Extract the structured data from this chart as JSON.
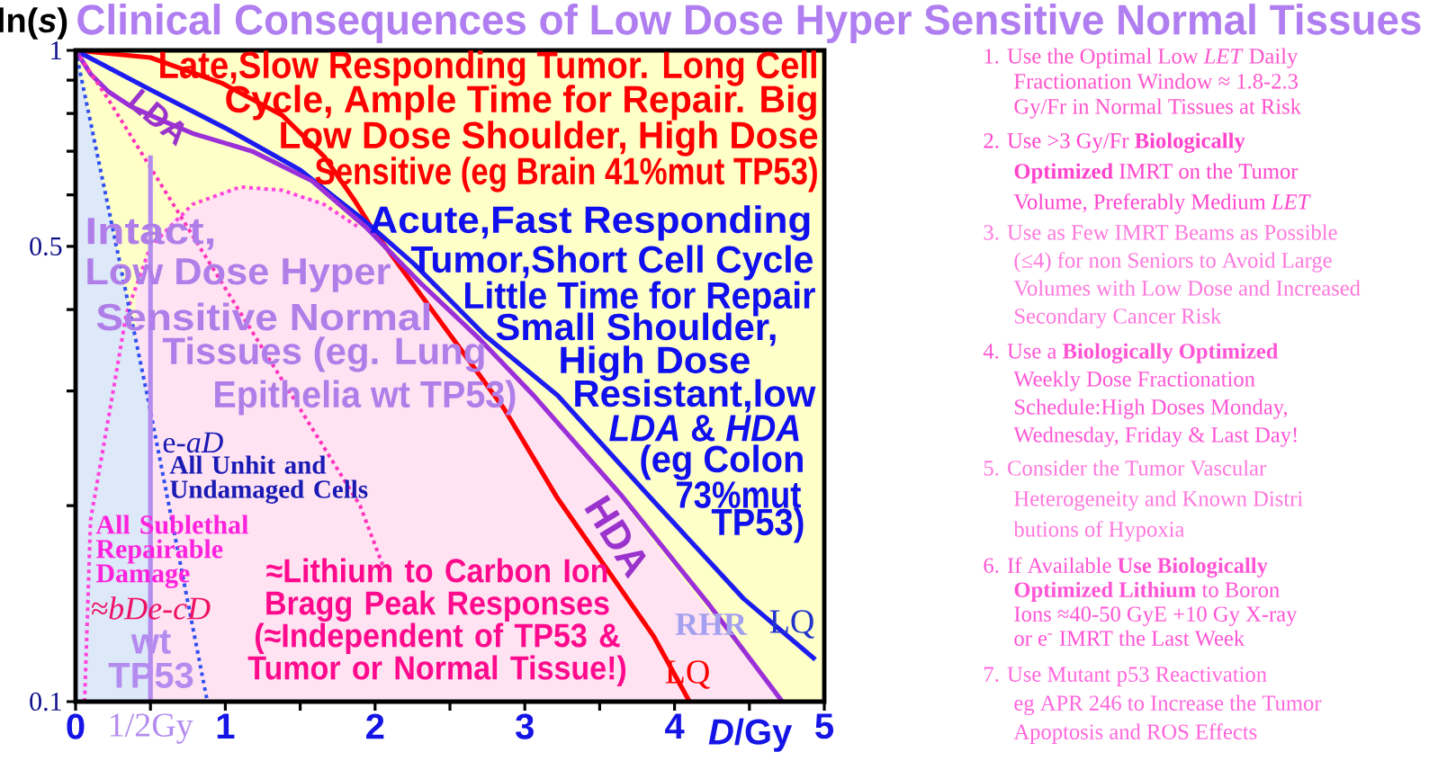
{
  "chart_data": {
    "type": "line",
    "title": "Clinical Consequences of Low Dose Hyper Sensitive Normal Tissues",
    "xlabel": "*D*/Gy",
    "ylabel": "ln(*s*)",
    "xlim": [
      0,
      5
    ],
    "ylim": [
      0.1,
      1
    ],
    "log": "y",
    "xticks": [
      0,
      {
        "value": 0.5,
        "label": "1/2Gy"
      },
      1,
      {
        "value": 1.5,
        "label": null
      },
      2,
      {
        "value": 2.5,
        "label": null
      },
      3,
      {
        "value": 3.5,
        "label": null
      },
      4,
      {
        "value": 4.5,
        "label": null
      },
      5
    ],
    "yticks": [
      0.1,
      {
        "value": 0.2,
        "label": null
      },
      {
        "value": 0.3,
        "label": null
      },
      {
        "value": 0.4,
        "label": null
      },
      0.5,
      {
        "value": 0.6,
        "label": null
      },
      {
        "value": 0.7,
        "label": null
      },
      {
        "value": 0.8,
        "label": null
      },
      {
        "value": 0.9,
        "label": null
      },
      1
    ],
    "bands": [
      {
        "axis": "y",
        "from": 0.1,
        "to": 1,
        "color": "#ffffc8"
      }
    ],
    "series": [
      {
        "type": "area",
        "color": "#ffe3f3",
        "x": [
          0.4,
          0.5,
          0.65,
          1,
          1.3,
          1.6,
          1.85,
          2,
          2.5,
          3,
          3.5,
          4,
          4.5,
          4.72
        ],
        "values": [
          0.43,
          0.5,
          0.55,
          0.61,
          0.615,
          0.59,
          0.545,
          0.52,
          0.4,
          0.305,
          0.225,
          0.16,
          0.115,
          0.1
        ]
      },
      {
        "type": "area",
        "color": "#dde8f8",
        "x": [
          0,
          0.25,
          0.5
        ],
        "values": [
          1,
          0.53,
          0.28
        ]
      },
      {
        "color": "#ff0000",
        "x": [
          0,
          0.5,
          0.98,
          1.38,
          1.66,
          1.86,
          1.98,
          2.42,
          2.86,
          3.22,
          3.58,
          3.86,
          4.1
        ],
        "values": [
          1,
          0.975,
          0.89,
          0.795,
          0.687,
          0.59,
          0.533,
          0.388,
          0.282,
          0.205,
          0.156,
          0.126,
          0.1
        ]
      },
      {
        "color": "#1c1cf0",
        "x": [
          0,
          0.5,
          1,
          1.5,
          1.94,
          2.26,
          2.74,
          3.22,
          3.82,
          4.46,
          4.94
        ],
        "values": [
          1,
          0.87,
          0.76,
          0.655,
          0.545,
          0.47,
          0.364,
          0.295,
          0.208,
          0.144,
          0.116
        ]
      },
      {
        "color": "#9b30d8",
        "x": [
          0,
          0.1,
          0.22,
          0.37,
          0.58,
          0.78,
          1.18,
          1.58,
          1.94,
          2.3,
          2.7,
          3.06,
          3.64,
          4.24,
          4.72
        ],
        "values": [
          1,
          0.92,
          0.864,
          0.82,
          0.78,
          0.746,
          0.7,
          0.63,
          0.535,
          0.44,
          0.36,
          0.295,
          0.208,
          0.14,
          0.1
        ]
      },
      {
        "color": "#ff33bb",
        "line_style": "dotted",
        "x": [
          0,
          0.22,
          0.85,
          1.9,
          2.06
        ],
        "values": [
          1,
          0.84,
          0.49,
          0.2,
          0.16
        ]
      },
      {
        "color": "#ff44dd",
        "line_style": "dotted",
        "x": [
          0.06,
          0.1,
          0.24,
          0.34,
          0.5,
          0.78,
          1.1,
          1.38,
          1.66,
          1.9
        ],
        "values": [
          0.1,
          0.19,
          0.29,
          0.395,
          0.5,
          0.58,
          0.617,
          0.61,
          0.58,
          0.533
        ]
      },
      {
        "color": "#3050f0",
        "line_style": "dotted",
        "x": [
          0,
          0.25,
          0.49,
          0.88
        ],
        "values": [
          1,
          0.53,
          0.287,
          0.1
        ]
      },
      {
        "color": "#b48cf0",
        "x": [
          0.5,
          0.5
        ],
        "values": [
          0.1,
          0.69
        ]
      }
    ],
    "annotations": [
      "Late,Slow Responding Tumor. Long Cell",
      "Cycle, Ample Time for Repair. Big",
      "Low Dose Shoulder, High Dose",
      "Sensitive (eg Brain 41%mut TP53)",
      "Acute,Fast Responding",
      "Tumor,Short Cell Cycle",
      "Little Time for Repair",
      "Small Shoulder,",
      "High Dose",
      "Resistant,low",
      "*LDA* & *HDA*",
      "(eg Colon",
      "73%mut",
      "TP53)",
      "Intact,",
      "Low Dose Hyper",
      "Sensitive Normal",
      "Tissues (eg. Lung",
      "Epithelia wt TP53)",
      "e-*aD*",
      "All Unhit and Undamaged Cells",
      "All Sublethal Repairable Damage",
      "*≈bDe-cD*",
      "wt TP53",
      "≈Lithium to Carbon Ion Bragg Peak Responses (≈Independent of TP53 & Tumor or Normal Tissue!)",
      "LDA",
      "HDA",
      "LQ",
      "RHR",
      "LQ",
      "1. Use the Optimal Low *LET* Daily Fractionation Window ≈ 1.8-2.3 Gy/Fr in Normal Tissues at Risk",
      "2. Use >3 Gy/Fr **Biologically Optimized** IMRT on the Tumor Volume, Preferably Medium *LET*",
      "3. Use as Few IMRT Beams as Possible (≤4) for non Seniors to Avoid Large Volumes with Low Dose and Increased Secondary Cancer Risk",
      "4. Use a **Biologically Optimized** Weekly Dose Fractionation Schedule:High Doses Monday, Wednesday, Friday & Last Day!",
      "5. Consider the Tumor Vascular Heterogeneity and Known Distri butions of Hypoxia",
      "6. If Available **Use Biologically Optimized Lithium** to Boron Ions ≈40-50 GyE +10 Gy X-ray or e$^{-}$ IMRT the Last Week",
      "7. Use Mutant p53 Reactivation eg APR 246 to Increase the Tumor Apoptosis and ROS Effects"
    ]
  }
}
